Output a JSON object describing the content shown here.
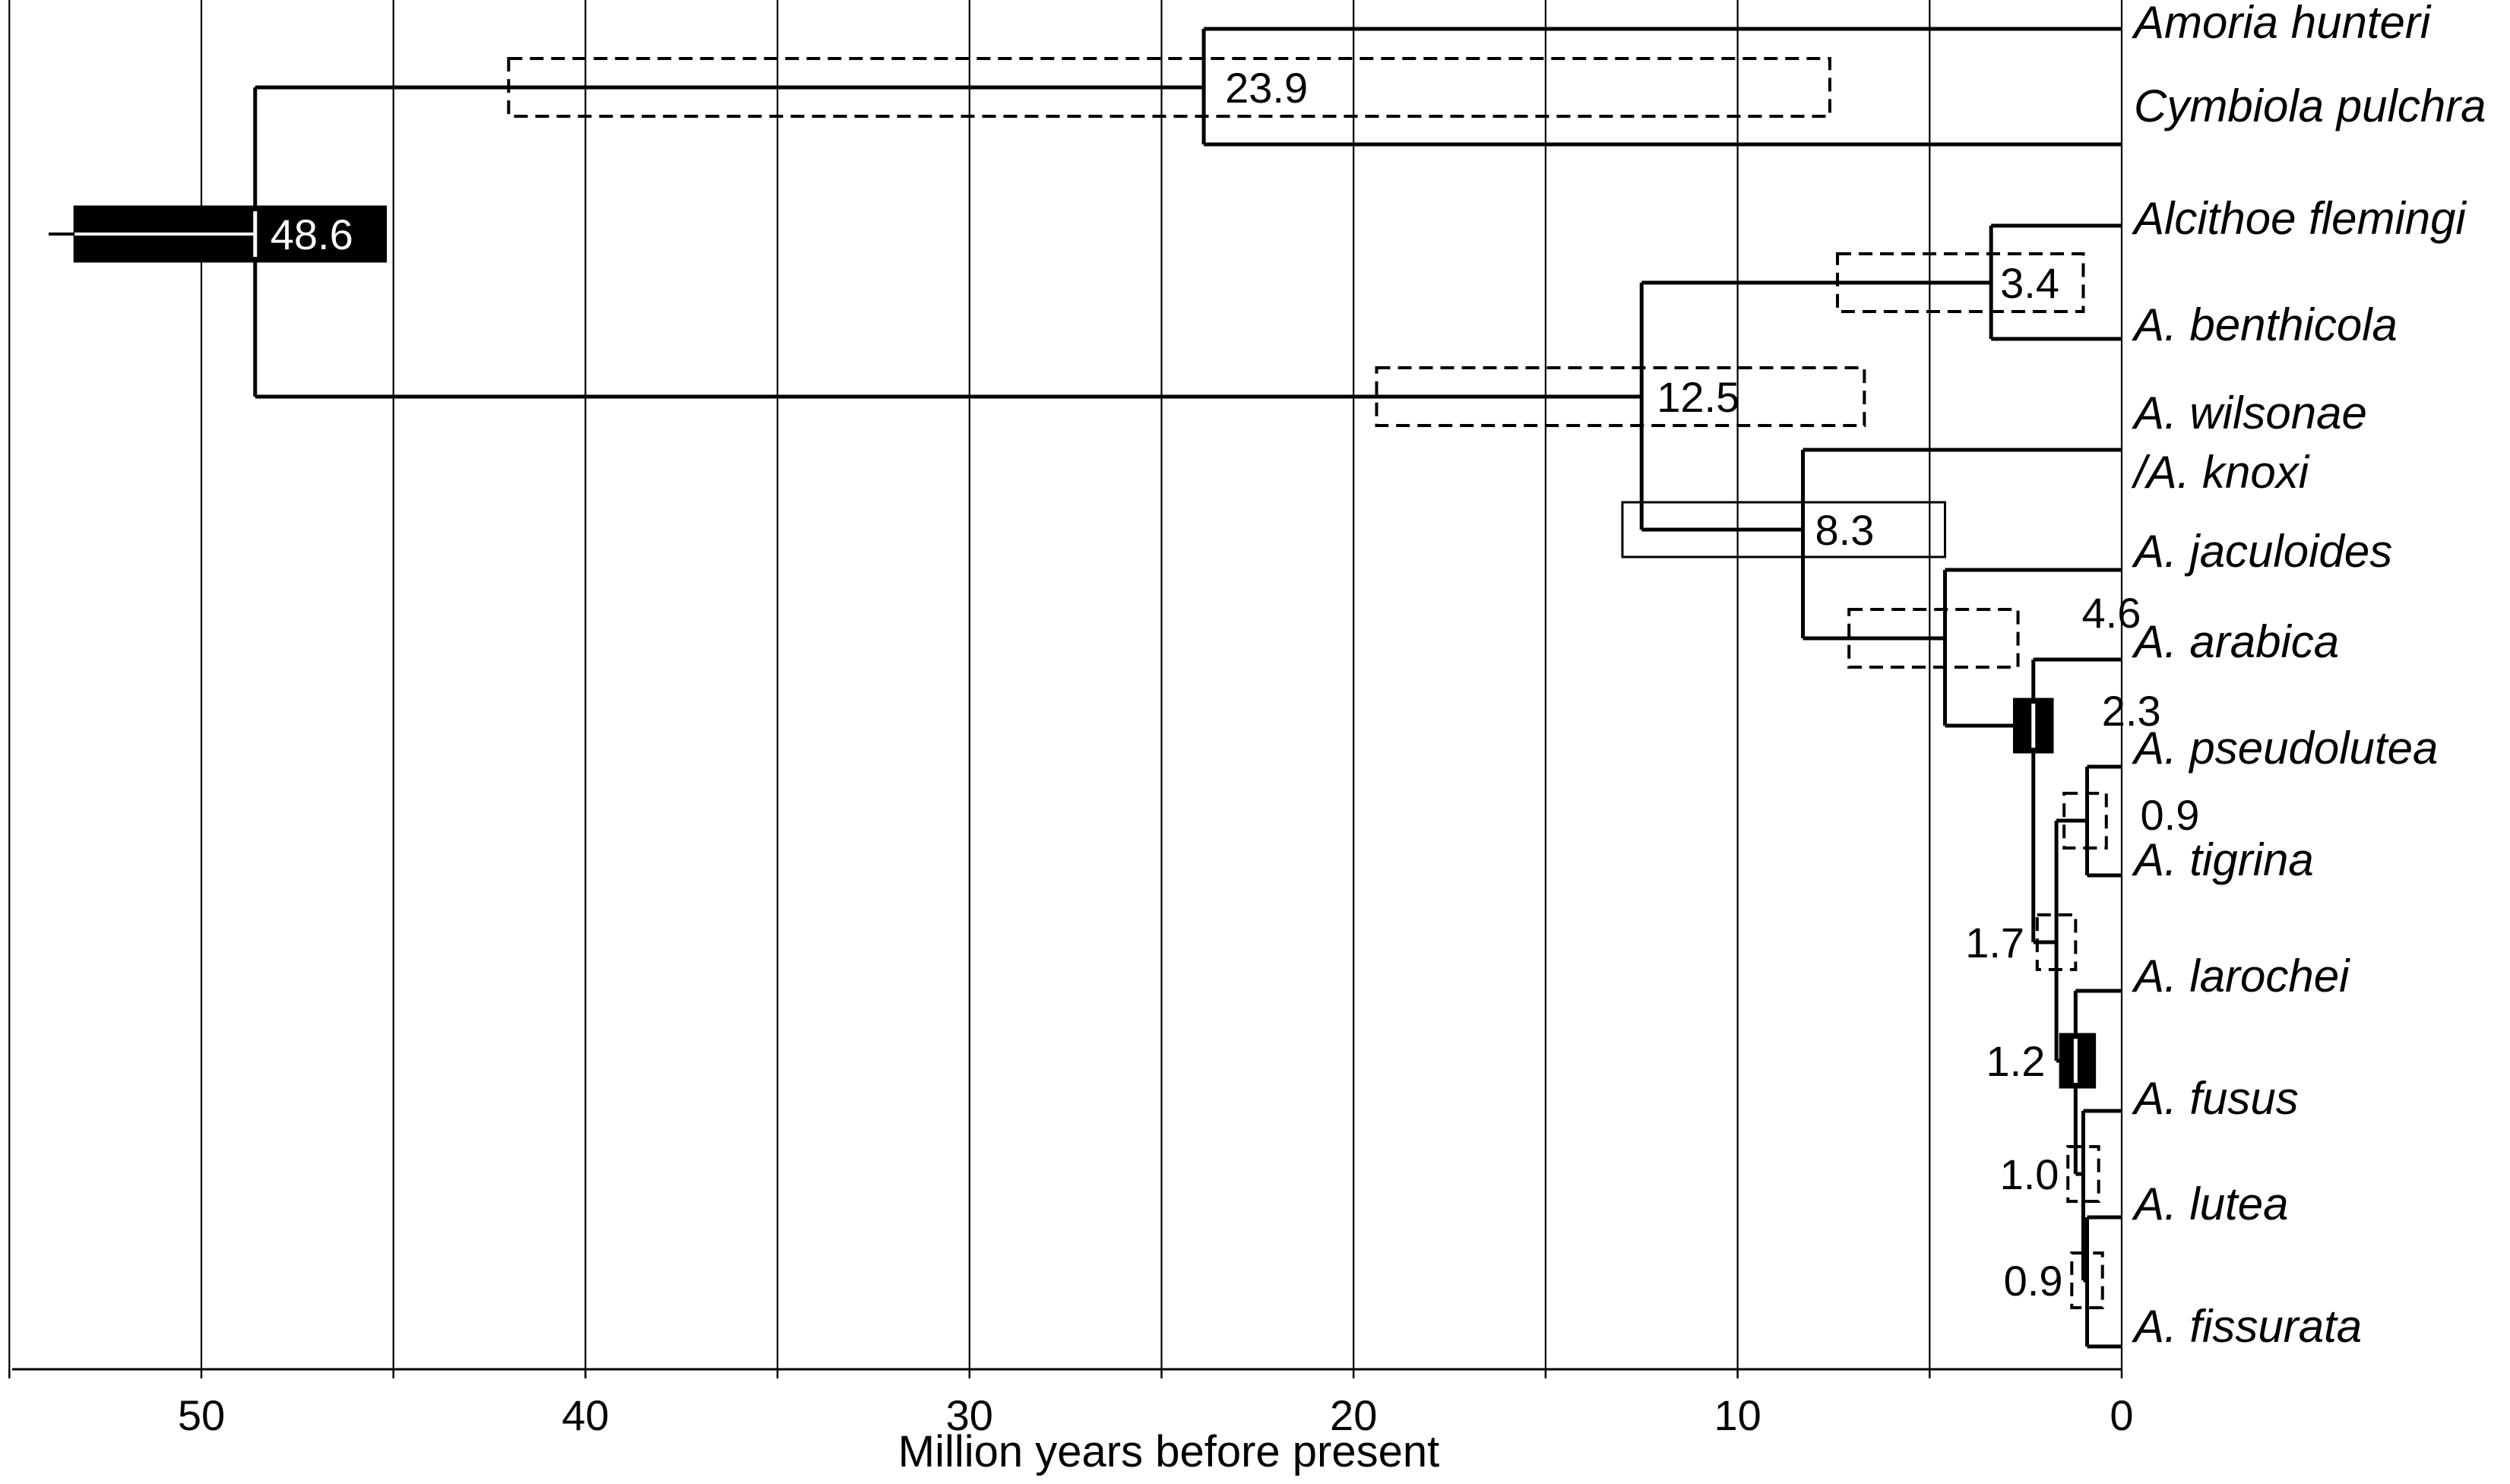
{
  "tree": {
    "taxa": [
      "Amoria hunteri",
      "Cymbiola pulchra",
      "Alcithoe flemingi",
      "A. benthicola",
      "A. wilsonae",
      "/A. knoxi",
      "A. jaculoides",
      "A. arabica",
      "A. pseudolutea",
      "A. tigrina",
      "A. larochei",
      "A. fusus",
      "A. lutea",
      "A. fissurata"
    ],
    "nodes": [
      {
        "id": "root",
        "age": 48.6,
        "label": "48.6",
        "ci": [
          53.3,
          45.2
        ],
        "bar_style": "solid-black"
      },
      {
        "id": "amoria-cymbiola",
        "age": 23.9,
        "label": "23.9",
        "ci": [
          42.0,
          7.6
        ],
        "bar_style": "dashed"
      },
      {
        "id": "alcithoe-clade",
        "age": 12.5,
        "label": "12.5",
        "ci": [
          19.4,
          6.7
        ],
        "bar_style": "dashed"
      },
      {
        "id": "flemingi-benthicola",
        "age": 3.4,
        "label": "3.4",
        "ci": [
          7.4,
          1.0
        ],
        "bar_style": "dashed"
      },
      {
        "id": "wilsonae-clade",
        "age": 8.3,
        "label": "8.3",
        "ci": [
          13.0,
          4.6
        ],
        "bar_style": "solid-open"
      },
      {
        "id": "jaculoides-clade",
        "age": 4.6,
        "label": "4.6",
        "ci": [
          7.1,
          2.7
        ],
        "bar_style": "dashed"
      },
      {
        "id": "arabica-clade",
        "age": 2.3,
        "label": "2.3",
        "ci": [
          2.8,
          1.8
        ],
        "bar_style": "solid-black"
      },
      {
        "id": "pseudolutea-tigrina",
        "age": 0.9,
        "label": "0.9",
        "ci": [
          1.5,
          0.4
        ],
        "bar_style": "dashed"
      },
      {
        "id": "pseudolutea-fissurata",
        "age": 1.7,
        "label": "1.7",
        "ci": [
          2.2,
          1.2
        ],
        "bar_style": "dashed"
      },
      {
        "id": "larochei-fissurata",
        "age": 1.2,
        "label": "1.2",
        "ci": [
          1.6,
          0.7
        ],
        "bar_style": "solid-black"
      },
      {
        "id": "fusus-fissurata",
        "age": 1.0,
        "label": "1.0",
        "ci": [
          1.4,
          0.6
        ],
        "bar_style": "dashed"
      },
      {
        "id": "lutea-fissurata",
        "age": 0.9,
        "label": "0.9",
        "ci": [
          1.3,
          0.5
        ],
        "bar_style": "dashed"
      }
    ]
  },
  "axis": {
    "title": "Million years before present",
    "ticks": [
      "50",
      "40",
      "30",
      "20",
      "10",
      "0"
    ],
    "range": [
      55,
      0
    ],
    "gridlines_every": 5
  }
}
